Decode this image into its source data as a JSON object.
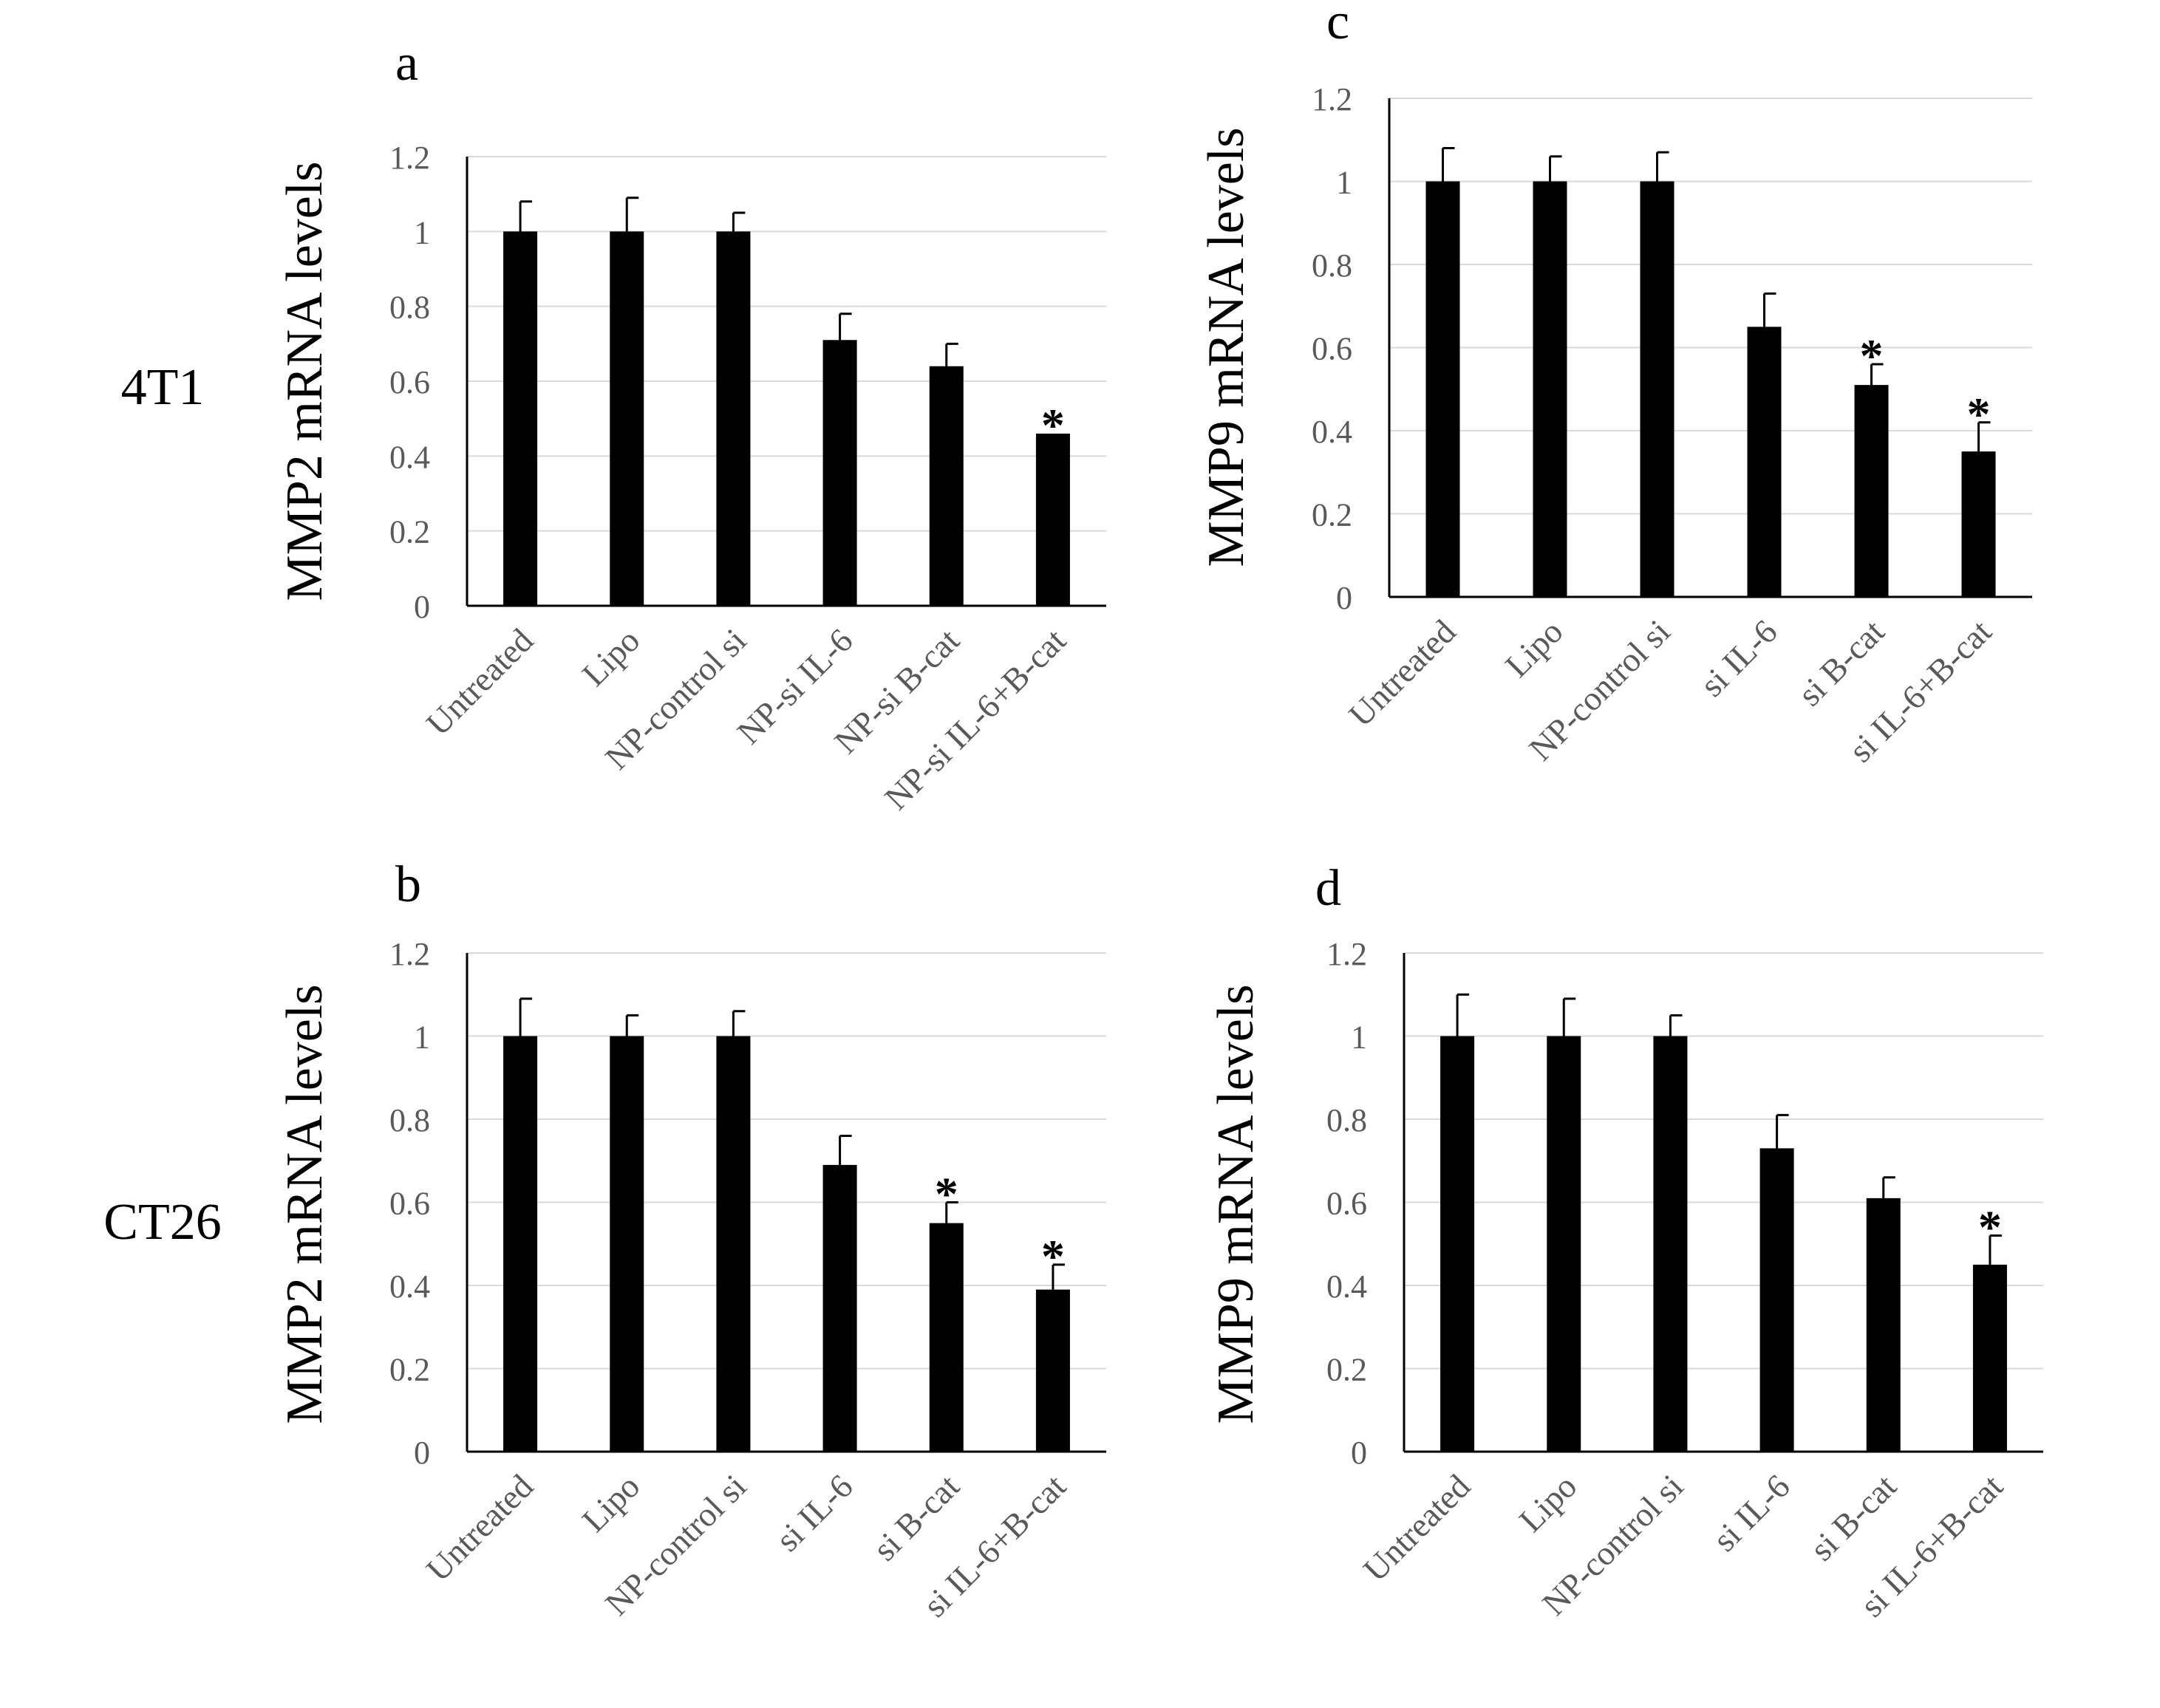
{
  "row_labels": [
    "4T1",
    "CT26"
  ],
  "chart_data": [
    {
      "type": "bar",
      "panel": "a",
      "title": "",
      "ylabel": "MMP2 mRNA levels",
      "xlabel": "",
      "ylim": [
        0,
        1.2
      ],
      "yticks": [
        "0",
        "0.2",
        "0.4",
        "0.6",
        "0.8",
        "1",
        "1.2"
      ],
      "categories": [
        "Untreated",
        "Lipo",
        "NP-control si",
        "NP-si IL-6",
        "NP-si B-cat",
        "NP-si IL-6+B-cat"
      ],
      "values": [
        1.0,
        1.0,
        1.0,
        0.71,
        0.64,
        0.46
      ],
      "errors": [
        0.08,
        0.09,
        0.05,
        0.07,
        0.06,
        0.0
      ],
      "significance": [
        "",
        "",
        "",
        "",
        "",
        "*"
      ],
      "grid": true
    },
    {
      "type": "bar",
      "panel": "b",
      "title": "",
      "ylabel": "MMP2 mRNA levels",
      "xlabel": "",
      "ylim": [
        0,
        1.2
      ],
      "yticks": [
        "0",
        "0.2",
        "0.4",
        "0.6",
        "0.8",
        "1",
        "1.2"
      ],
      "categories": [
        "Untreated",
        "Lipo",
        "NP-control si",
        "si IL-6",
        "si B-cat",
        "si IL-6+B-cat"
      ],
      "values": [
        1.0,
        1.0,
        1.0,
        0.69,
        0.55,
        0.39
      ],
      "errors": [
        0.09,
        0.05,
        0.06,
        0.07,
        0.05,
        0.06
      ],
      "significance": [
        "",
        "",
        "",
        "",
        "*",
        "*"
      ],
      "grid": true
    },
    {
      "type": "bar",
      "panel": "c",
      "title": "",
      "ylabel": "MMP9 mRNA levels",
      "xlabel": "",
      "ylim": [
        0,
        1.2
      ],
      "yticks": [
        "0",
        "0.2",
        "0.4",
        "0.6",
        "0.8",
        "1",
        "1.2"
      ],
      "categories": [
        "Untreated",
        "Lipo",
        "NP-control si",
        "si IL-6",
        "si B-cat",
        "si IL-6+B-cat"
      ],
      "values": [
        1.0,
        1.0,
        1.0,
        0.65,
        0.51,
        0.35
      ],
      "errors": [
        0.08,
        0.06,
        0.07,
        0.08,
        0.05,
        0.07
      ],
      "significance": [
        "",
        "",
        "",
        "",
        "*",
        "*"
      ],
      "grid": true
    },
    {
      "type": "bar",
      "panel": "d",
      "title": "",
      "ylabel": "MMP9 mRNA levels",
      "xlabel": "",
      "ylim": [
        0,
        1.2
      ],
      "yticks": [
        "0",
        "0.2",
        "0.4",
        "0.6",
        "0.8",
        "1",
        "1.2"
      ],
      "categories": [
        "Untreated",
        "Lipo",
        "NP-control si",
        "si IL-6",
        "si B-cat",
        "si IL-6+B-cat"
      ],
      "values": [
        1.0,
        1.0,
        1.0,
        0.73,
        0.61,
        0.45
      ],
      "errors": [
        0.1,
        0.09,
        0.05,
        0.08,
        0.05,
        0.07
      ],
      "significance": [
        "",
        "",
        "",
        "",
        "",
        "*"
      ],
      "grid": true
    }
  ]
}
